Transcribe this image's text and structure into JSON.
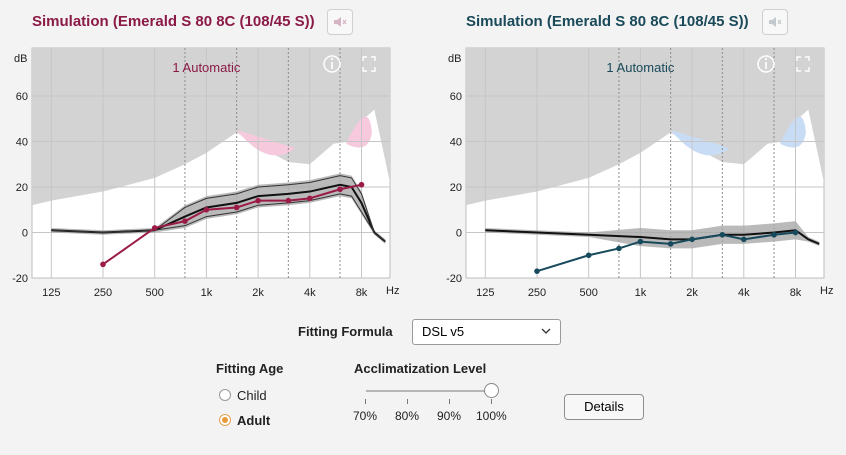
{
  "left_panel": {
    "title": "Simulation (Emerald S 80 8C (108/45 S))",
    "color": "#8b1a47",
    "mode_label": "1 Automatic",
    "curve_color": "#9b1b48",
    "uncomfortable_color": "#f6c9dc",
    "target_points": [
      [
        250,
        -14
      ],
      [
        500,
        2
      ],
      [
        750,
        5
      ],
      [
        1000,
        10
      ],
      [
        1500,
        11
      ],
      [
        2000,
        14
      ],
      [
        3000,
        14
      ],
      [
        4000,
        15
      ],
      [
        6000,
        19
      ],
      [
        8000,
        21
      ]
    ]
  },
  "right_panel": {
    "title": "Simulation (Emerald S 80 8C (108/45 S))",
    "color": "#1a4a5a",
    "mode_label": "1 Automatic",
    "curve_color": "#174a5c",
    "uncomfortable_color": "#c8dcf6",
    "target_points": [
      [
        250,
        -17
      ],
      [
        500,
        -10
      ],
      [
        750,
        -7
      ],
      [
        1000,
        -4
      ],
      [
        1500,
        -5
      ],
      [
        2000,
        -3
      ],
      [
        3000,
        -1
      ],
      [
        4000,
        -3
      ],
      [
        6000,
        -1
      ],
      [
        8000,
        0
      ]
    ]
  },
  "chart_common": {
    "y_unit": "dB",
    "x_unit": "Hz",
    "y_ticks": [
      "60",
      "40",
      "20",
      "0",
      "-20"
    ],
    "x_ticks": [
      "125",
      "250",
      "500",
      "1k",
      "2k",
      "4k",
      "8k"
    ],
    "info_icon": "info-icon",
    "expand_icon": "expand-icon",
    "speaker_icon": "speaker-muted-icon"
  },
  "controls": {
    "fitting_formula_label": "Fitting Formula",
    "fitting_formula_value": "DSL v5",
    "fitting_age_label": "Fitting Age",
    "age_options": [
      {
        "label": "Child",
        "selected": false
      },
      {
        "label": "Adult",
        "selected": true
      }
    ],
    "acclimatization_label": "Acclimatization Level",
    "acclimatization_ticks": [
      "70%",
      "80%",
      "90%",
      "100%"
    ],
    "acclimatization_value": "100%",
    "details_button": "Details"
  }
}
